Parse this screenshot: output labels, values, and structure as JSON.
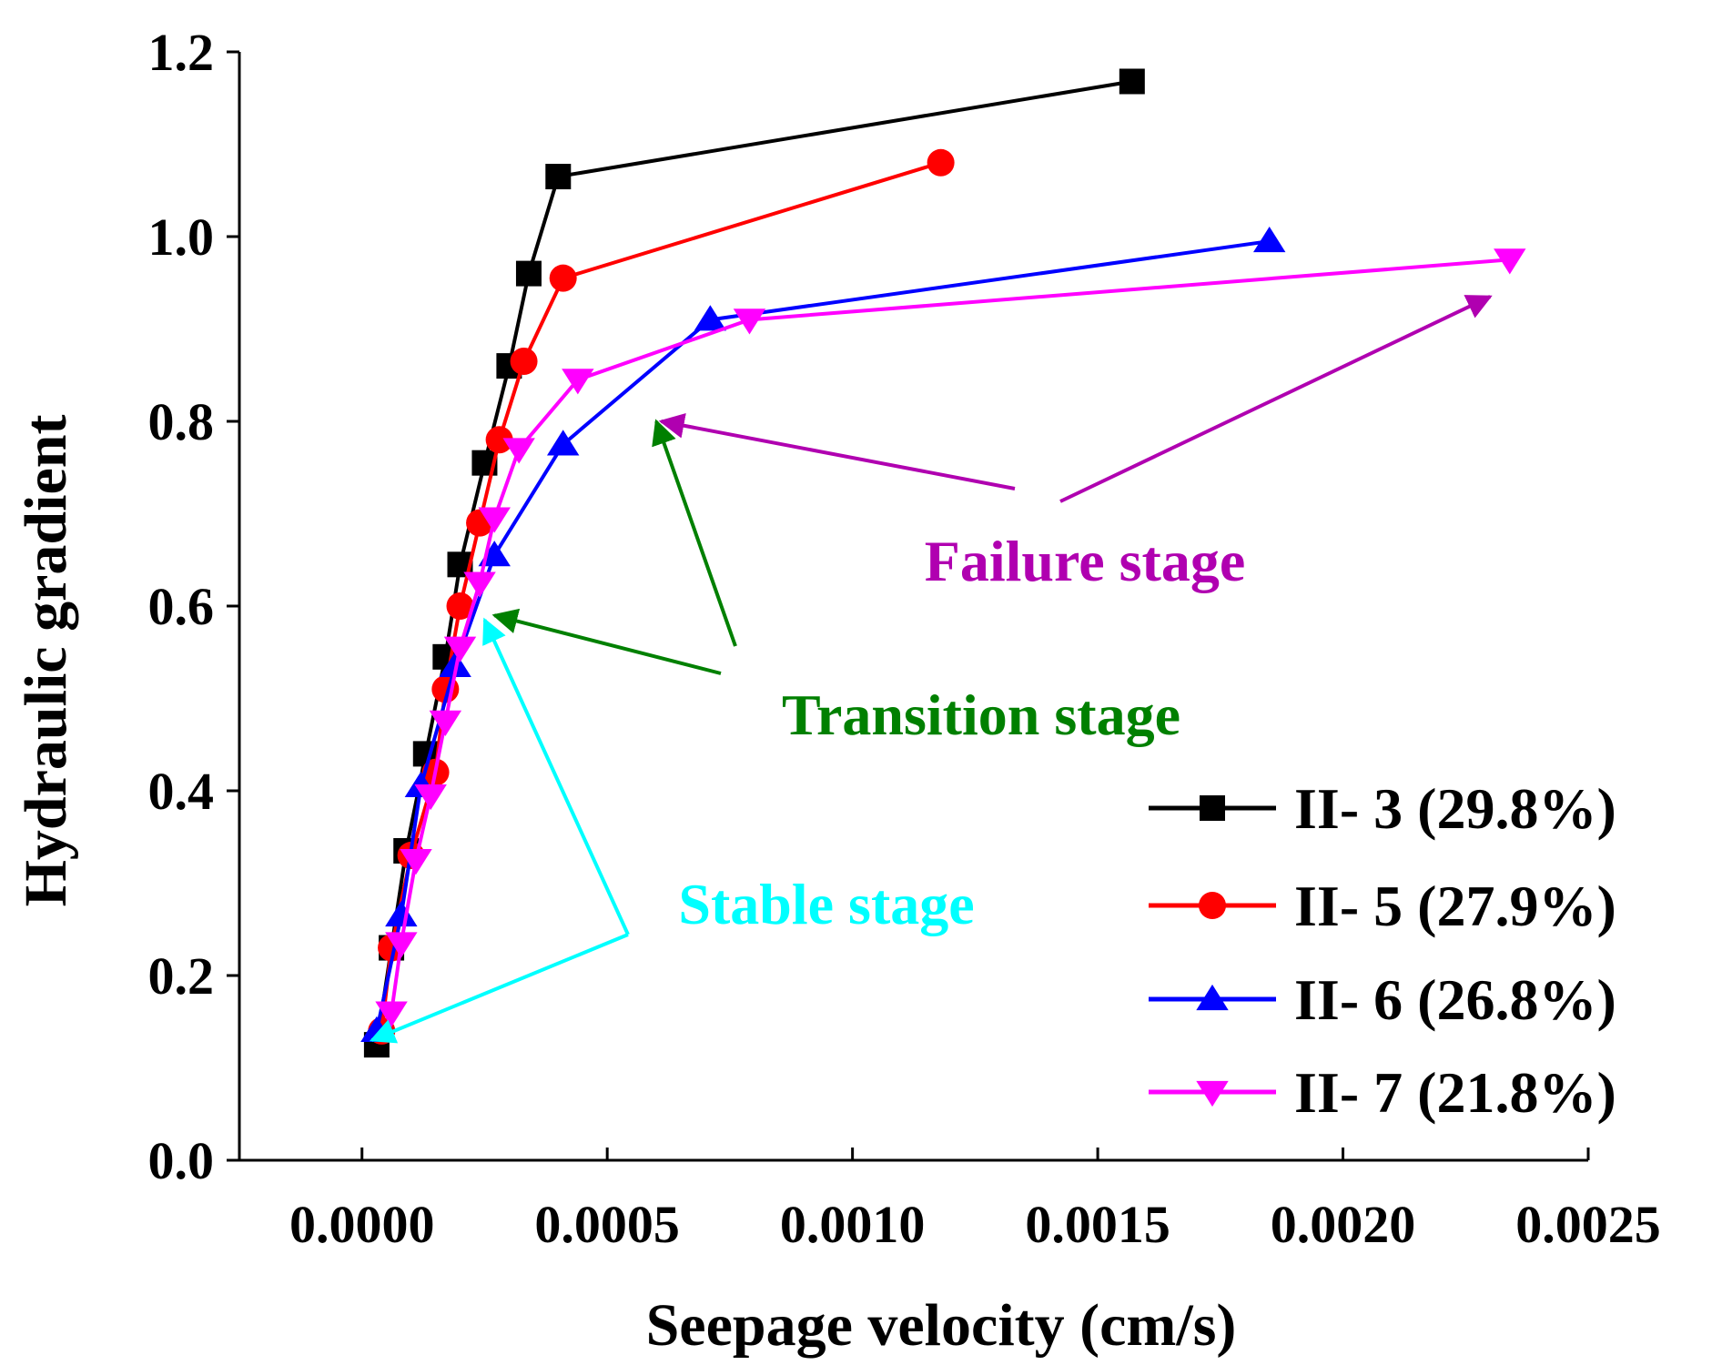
{
  "chart_data": {
    "type": "line",
    "xlabel": "Seepage velocity (cm/s)",
    "ylabel": "Hydraulic gradient",
    "xlim": [
      -0.00025,
      0.0025
    ],
    "ylim": [
      0.0,
      1.2
    ],
    "xticks": [
      0.0,
      0.0005,
      0.001,
      0.0015,
      0.002,
      0.0025
    ],
    "xtick_labels": [
      "0.0000",
      "0.0005",
      "0.0010",
      "0.0015",
      "0.0020",
      "0.0025"
    ],
    "yticks": [
      0.0,
      0.2,
      0.4,
      0.6,
      0.8,
      1.0,
      1.2
    ],
    "ytick_labels": [
      "0.0",
      "0.2",
      "0.4",
      "0.6",
      "0.8",
      "1.0",
      "1.2"
    ],
    "legend_position": "bottom-right",
    "series": [
      {
        "name": "II- 3 (29.8%)",
        "color": "#000000",
        "marker": "square",
        "x": [
          3e-05,
          6e-05,
          9e-05,
          0.00013,
          0.00017,
          0.0002,
          0.00025,
          0.0003,
          0.00034,
          0.0004,
          0.00157
        ],
        "y": [
          0.125,
          0.23,
          0.335,
          0.44,
          0.545,
          0.645,
          0.755,
          0.86,
          0.96,
          1.065,
          1.168
        ]
      },
      {
        "name": "II- 5 (27.9%)",
        "color": "#ff0000",
        "marker": "circle",
        "x": [
          4e-05,
          6e-05,
          0.0001,
          0.00015,
          0.00017,
          0.0002,
          0.00024,
          0.00028,
          0.00033,
          0.00041,
          0.00118
        ],
        "y": [
          0.14,
          0.23,
          0.33,
          0.42,
          0.51,
          0.6,
          0.69,
          0.78,
          0.865,
          0.955,
          1.08
        ]
      },
      {
        "name": "II- 6 (26.8%)",
        "color": "#0000ff",
        "marker": "triangle-up",
        "x": [
          3e-05,
          8e-05,
          0.00012,
          0.00019,
          0.00027,
          0.00041,
          0.00071,
          0.00185
        ],
        "y": [
          0.14,
          0.265,
          0.405,
          0.535,
          0.655,
          0.775,
          0.91,
          0.995
        ]
      },
      {
        "name": "II- 7 (21.8%)",
        "color": "#ff00ff",
        "marker": "triangle-down",
        "x": [
          6e-05,
          8e-05,
          0.00011,
          0.00014,
          0.00017,
          0.0002,
          0.00024,
          0.00027,
          0.00032,
          0.00044,
          0.00079,
          0.00234
        ],
        "y": [
          0.16,
          0.235,
          0.325,
          0.395,
          0.475,
          0.555,
          0.625,
          0.695,
          0.77,
          0.845,
          0.91,
          0.975
        ]
      }
    ],
    "annotations": [
      {
        "label": "Stable stage",
        "color": "#00ffff",
        "arrows_to": [
          [
            2e-05,
            0.13
          ],
          [
            0.00025,
            0.585
          ]
        ]
      },
      {
        "label": "Transition stage",
        "color": "#008000",
        "arrows_to": [
          [
            0.00027,
            0.59
          ],
          [
            0.0006,
            0.8
          ]
        ]
      },
      {
        "label": "Failure stage",
        "color": "#b000b0",
        "arrows_to": [
          [
            0.00061,
            0.8
          ],
          [
            0.0023,
            0.935
          ]
        ]
      }
    ]
  }
}
